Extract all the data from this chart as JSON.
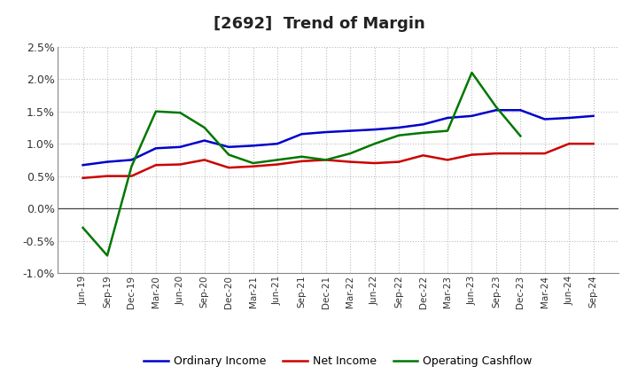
{
  "title": "[2692]  Trend of Margin",
  "x_labels": [
    "Jun-19",
    "Sep-19",
    "Dec-19",
    "Mar-20",
    "Jun-20",
    "Sep-20",
    "Dec-20",
    "Mar-21",
    "Jun-21",
    "Sep-21",
    "Dec-21",
    "Mar-22",
    "Jun-22",
    "Sep-22",
    "Dec-22",
    "Mar-23",
    "Jun-23",
    "Sep-23",
    "Dec-23",
    "Mar-24",
    "Jun-24",
    "Sep-24"
  ],
  "ordinary_income": [
    0.0067,
    0.0072,
    0.0075,
    0.0093,
    0.0095,
    0.0105,
    0.0095,
    0.0097,
    0.01,
    0.0115,
    0.0118,
    0.012,
    0.0122,
    0.0125,
    0.013,
    0.014,
    0.0143,
    0.0152,
    0.0152,
    0.0138,
    0.014,
    0.0143
  ],
  "net_income": [
    0.0047,
    0.005,
    0.005,
    0.0067,
    0.0068,
    0.0075,
    0.0063,
    0.0065,
    0.0068,
    0.0073,
    0.0075,
    0.0072,
    0.007,
    0.0072,
    0.0082,
    0.0075,
    0.0083,
    0.0085,
    0.0085,
    0.0085,
    0.01,
    0.01
  ],
  "operating_cashflow": [
    -0.003,
    -0.0073,
    0.0065,
    0.015,
    0.0148,
    0.0125,
    0.0083,
    0.007,
    0.0075,
    0.008,
    0.0075,
    0.0085,
    0.01,
    0.0113,
    0.0117,
    0.012,
    0.021,
    0.0157,
    0.0112,
    null,
    null,
    null
  ],
  "ylim": [
    -0.01,
    0.025
  ],
  "yticks": [
    -0.01,
    -0.005,
    0.0,
    0.005,
    0.01,
    0.015,
    0.02,
    0.025
  ],
  "ytick_labels": [
    "-1.0%",
    "-0.5%",
    "0.0%",
    "0.5%",
    "1.0%",
    "1.5%",
    "2.0%",
    "2.5%"
  ],
  "line_colors": {
    "ordinary_income": "#0000cc",
    "net_income": "#cc0000",
    "operating_cashflow": "#007700"
  },
  "legend_labels": [
    "Ordinary Income",
    "Net Income",
    "Operating Cashflow"
  ],
  "background_color": "#ffffff",
  "plot_bg_color": "#f5f5f5",
  "grid_color": "#bbbbbb",
  "title_fontsize": 13,
  "line_width": 1.8
}
